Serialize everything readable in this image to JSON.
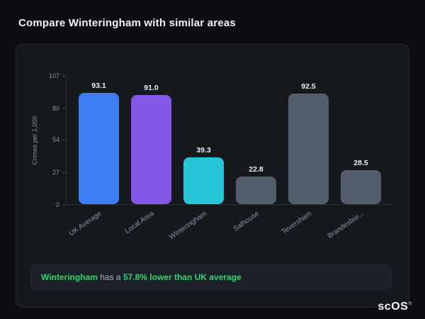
{
  "page": {
    "title": "Compare Winteringham with similar areas"
  },
  "chart_data": {
    "type": "bar",
    "categories": [
      "UK Average",
      "Local Area",
      "Winteringham",
      "Salhouse",
      "Teversham",
      "Brandesbur..."
    ],
    "values": [
      93.1,
      91.0,
      39.3,
      22.8,
      92.5,
      28.5
    ],
    "value_labels": [
      "93.1",
      "91.0",
      "39.3",
      "22.8",
      "92.5",
      "28.5"
    ],
    "bar_colors": [
      "#3d7df2",
      "#8457e6",
      "#27c5d8",
      "#535d6c",
      "#535d6c",
      "#535d6c"
    ],
    "title": "",
    "xlabel": "",
    "ylabel": "Crimes per 1,000",
    "yticks": [
      107,
      80,
      54,
      27,
      0
    ],
    "ylim": [
      0,
      107
    ],
    "grid": false,
    "legend": false
  },
  "note": {
    "prefix": "Winteringham",
    "middle": " has a ",
    "highlight": "57.8% lower than UK average"
  },
  "footer": {
    "logo": "scOS",
    "registered": "®"
  },
  "colors": {
    "background": "#0b0d11",
    "card": "#15181d",
    "accent_green": "#2fd673",
    "bar_blue": "#3d7df2",
    "bar_purple": "#8457e6",
    "bar_cyan": "#27c5d8",
    "bar_gray": "#535d6c"
  }
}
